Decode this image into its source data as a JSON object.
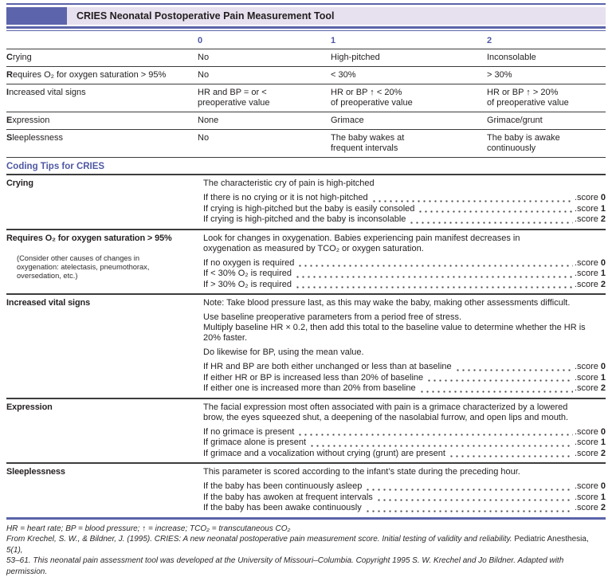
{
  "colors": {
    "accent": "#5b63a9",
    "band_block": "#5c64ac",
    "band_bg": "#e7e0ee",
    "rule_dark": "#3c3c3c"
  },
  "header": {
    "title": "CRIES Neonatal Postoperative Pain Measurement Tool"
  },
  "score_table": {
    "columns": [
      "0",
      "1",
      "2"
    ],
    "rows": [
      {
        "label_first": "C",
        "label_rest": "rying",
        "cells": [
          [
            "No"
          ],
          [
            "High-pitched"
          ],
          [
            "Inconsolable"
          ]
        ]
      },
      {
        "label_first": "R",
        "label_rest": "equires O₂ for oxygen saturation > 95%",
        "cells": [
          [
            "No"
          ],
          [
            "< 30%"
          ],
          [
            "> 30%"
          ]
        ]
      },
      {
        "label_first": "I",
        "label_rest": "ncreased vital signs",
        "cells": [
          [
            "HR and BP = or <",
            "preoperative value"
          ],
          [
            "HR or BP ↑ < 20%",
            "of preoperative value"
          ],
          [
            "HR or BP ↑ > 20%",
            "of preoperative value"
          ]
        ]
      },
      {
        "label_first": "E",
        "label_rest": "xpression",
        "cells": [
          [
            "None"
          ],
          [
            "Grimace"
          ],
          [
            "Grimace/grunt"
          ]
        ]
      },
      {
        "label_first": "S",
        "label_rest": "leeplessness",
        "cells": [
          [
            "No"
          ],
          [
            "The baby wakes at",
            "frequent intervals"
          ],
          [
            "The baby is awake",
            "continuously"
          ]
        ]
      }
    ]
  },
  "coding_tips": {
    "title": "Coding Tips for CRIES",
    "score_word": ".score",
    "blocks": [
      {
        "label": "Crying",
        "paragraphs": [
          [
            "The characteristic cry of pain is high-pitched"
          ]
        ],
        "scores": [
          [
            "If there is no crying or it is not high-pitched",
            "0"
          ],
          [
            "If crying is high-pitched but the baby is easily consoled",
            "1"
          ],
          [
            "If crying is high-pitched and the baby is inconsolable",
            "2"
          ]
        ]
      },
      {
        "label": "Requires O₂ for oxygen saturation > 95%",
        "note_lines": [
          "(Consider other causes of changes in",
          "oxygenation: atelectasis, pneumothorax,",
          "oversedation, etc.)"
        ],
        "paragraphs": [
          [
            "Look for changes in oxygenation. Babies experiencing pain manifest decreases in",
            "oxygenation as measured by TCO₂ or oxygen saturation."
          ]
        ],
        "scores": [
          [
            "If no oxygen is required",
            "0"
          ],
          [
            "If < 30% O₂ is required",
            "1"
          ],
          [
            "If > 30% O₂ is required",
            "2"
          ]
        ]
      },
      {
        "label": "Increased vital signs",
        "paragraphs": [
          [
            "Note: Take blood pressure last, as this may wake the baby, making other assessments difficult."
          ],
          [
            "Use baseline preoperative parameters from a period free of stress.",
            "Multiply baseline HR × 0.2, then add this total to the baseline value to determine whether the HR is",
            "20% faster."
          ],
          [
            "Do likewise for BP, using the mean value."
          ]
        ],
        "scores": [
          [
            "If HR and BP are both either unchanged or less than at baseline",
            "0"
          ],
          [
            "If either HR or BP is increased less than 20% of baseline",
            "1"
          ],
          [
            "If either one is increased more than 20% from baseline",
            "2"
          ]
        ]
      },
      {
        "label": "Expression",
        "paragraphs": [
          [
            "The facial expression most often associated with pain is a grimace characterized by a lowered",
            "brow, the eyes squeezed shut, a deepening of the nasolabial furrow, and open lips and mouth."
          ]
        ],
        "scores": [
          [
            "If no grimace is present",
            "0"
          ],
          [
            "If grimace alone is present",
            "1"
          ],
          [
            "If grimace and a vocalization without crying (grunt) are present",
            "2"
          ]
        ]
      },
      {
        "label": "Sleeplessness",
        "paragraphs": [
          [
            "This parameter is scored according to the infant’s state during the preceding hour."
          ]
        ],
        "scores": [
          [
            "If the baby has been continuously asleep",
            "0"
          ],
          [
            "If the baby has awoken at frequent intervals",
            "1"
          ],
          [
            "If the baby has been awake continuously",
            "2"
          ]
        ]
      }
    ]
  },
  "footnotes": {
    "abbrev": "HR = heart rate; BP = blood pressure; ↑ = increase; TCO₂ = transcutaneous CO₂",
    "citation_pre": "From Krechel, S. W., & Bildner, J. (1995). CRIES: A new neonatal postoperative pain measurement score. Initial testing of validity and reliability. ",
    "citation_journal": "Pediatric Anesthesia,",
    "citation_tail": " 5(1),",
    "citation_line2": "53–61. This neonatal pain assessment tool was developed at the University of Missouri–Columbia. Copyright 1995 S. W. Krechel and Jo Bildner. Adapted with permission."
  }
}
